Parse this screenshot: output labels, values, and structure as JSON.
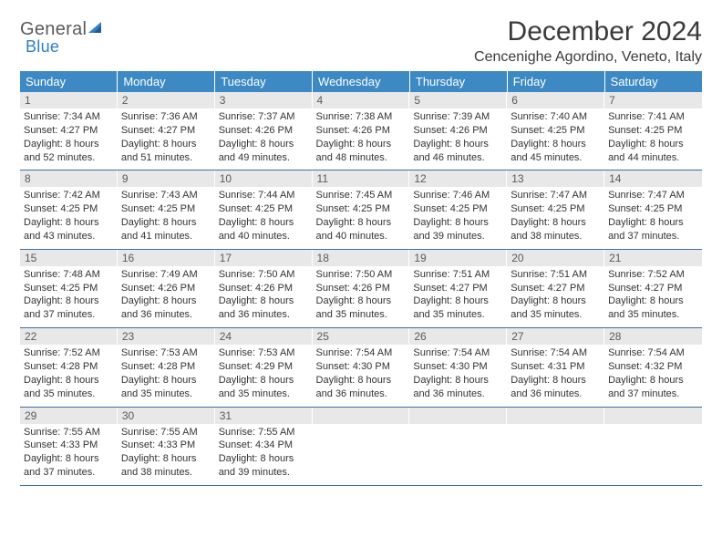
{
  "brand": {
    "word1": "General",
    "word2": "Blue",
    "word1_color": "#5a5a5a",
    "word2_color": "#2f7fc2",
    "triangle_fill": "#2f7fc2"
  },
  "header": {
    "title": "December 2024",
    "location": "Cencenighe Agordino, Veneto, Italy"
  },
  "colors": {
    "header_bg": "#3d89c3",
    "header_text": "#ffffff",
    "daynum_bg": "#e8e8e8",
    "daynum_text": "#5a5a5a",
    "cell_border": "#3d6fa0",
    "body_text": "#333333",
    "page_bg": "#ffffff"
  },
  "typography": {
    "title_fontsize": 30,
    "location_fontsize": 16,
    "weekday_fontsize": 13,
    "body_fontsize": 11
  },
  "calendar": {
    "type": "table",
    "columns": [
      "Sunday",
      "Monday",
      "Tuesday",
      "Wednesday",
      "Thursday",
      "Friday",
      "Saturday"
    ],
    "rows": [
      [
        {
          "day": "1",
          "sunrise": "Sunrise: 7:34 AM",
          "sunset": "Sunset: 4:27 PM",
          "daylight": "Daylight: 8 hours and 52 minutes."
        },
        {
          "day": "2",
          "sunrise": "Sunrise: 7:36 AM",
          "sunset": "Sunset: 4:27 PM",
          "daylight": "Daylight: 8 hours and 51 minutes."
        },
        {
          "day": "3",
          "sunrise": "Sunrise: 7:37 AM",
          "sunset": "Sunset: 4:26 PM",
          "daylight": "Daylight: 8 hours and 49 minutes."
        },
        {
          "day": "4",
          "sunrise": "Sunrise: 7:38 AM",
          "sunset": "Sunset: 4:26 PM",
          "daylight": "Daylight: 8 hours and 48 minutes."
        },
        {
          "day": "5",
          "sunrise": "Sunrise: 7:39 AM",
          "sunset": "Sunset: 4:26 PM",
          "daylight": "Daylight: 8 hours and 46 minutes."
        },
        {
          "day": "6",
          "sunrise": "Sunrise: 7:40 AM",
          "sunset": "Sunset: 4:25 PM",
          "daylight": "Daylight: 8 hours and 45 minutes."
        },
        {
          "day": "7",
          "sunrise": "Sunrise: 7:41 AM",
          "sunset": "Sunset: 4:25 PM",
          "daylight": "Daylight: 8 hours and 44 minutes."
        }
      ],
      [
        {
          "day": "8",
          "sunrise": "Sunrise: 7:42 AM",
          "sunset": "Sunset: 4:25 PM",
          "daylight": "Daylight: 8 hours and 43 minutes."
        },
        {
          "day": "9",
          "sunrise": "Sunrise: 7:43 AM",
          "sunset": "Sunset: 4:25 PM",
          "daylight": "Daylight: 8 hours and 41 minutes."
        },
        {
          "day": "10",
          "sunrise": "Sunrise: 7:44 AM",
          "sunset": "Sunset: 4:25 PM",
          "daylight": "Daylight: 8 hours and 40 minutes."
        },
        {
          "day": "11",
          "sunrise": "Sunrise: 7:45 AM",
          "sunset": "Sunset: 4:25 PM",
          "daylight": "Daylight: 8 hours and 40 minutes."
        },
        {
          "day": "12",
          "sunrise": "Sunrise: 7:46 AM",
          "sunset": "Sunset: 4:25 PM",
          "daylight": "Daylight: 8 hours and 39 minutes."
        },
        {
          "day": "13",
          "sunrise": "Sunrise: 7:47 AM",
          "sunset": "Sunset: 4:25 PM",
          "daylight": "Daylight: 8 hours and 38 minutes."
        },
        {
          "day": "14",
          "sunrise": "Sunrise: 7:47 AM",
          "sunset": "Sunset: 4:25 PM",
          "daylight": "Daylight: 8 hours and 37 minutes."
        }
      ],
      [
        {
          "day": "15",
          "sunrise": "Sunrise: 7:48 AM",
          "sunset": "Sunset: 4:25 PM",
          "daylight": "Daylight: 8 hours and 37 minutes."
        },
        {
          "day": "16",
          "sunrise": "Sunrise: 7:49 AM",
          "sunset": "Sunset: 4:26 PM",
          "daylight": "Daylight: 8 hours and 36 minutes."
        },
        {
          "day": "17",
          "sunrise": "Sunrise: 7:50 AM",
          "sunset": "Sunset: 4:26 PM",
          "daylight": "Daylight: 8 hours and 36 minutes."
        },
        {
          "day": "18",
          "sunrise": "Sunrise: 7:50 AM",
          "sunset": "Sunset: 4:26 PM",
          "daylight": "Daylight: 8 hours and 35 minutes."
        },
        {
          "day": "19",
          "sunrise": "Sunrise: 7:51 AM",
          "sunset": "Sunset: 4:27 PM",
          "daylight": "Daylight: 8 hours and 35 minutes."
        },
        {
          "day": "20",
          "sunrise": "Sunrise: 7:51 AM",
          "sunset": "Sunset: 4:27 PM",
          "daylight": "Daylight: 8 hours and 35 minutes."
        },
        {
          "day": "21",
          "sunrise": "Sunrise: 7:52 AM",
          "sunset": "Sunset: 4:27 PM",
          "daylight": "Daylight: 8 hours and 35 minutes."
        }
      ],
      [
        {
          "day": "22",
          "sunrise": "Sunrise: 7:52 AM",
          "sunset": "Sunset: 4:28 PM",
          "daylight": "Daylight: 8 hours and 35 minutes."
        },
        {
          "day": "23",
          "sunrise": "Sunrise: 7:53 AM",
          "sunset": "Sunset: 4:28 PM",
          "daylight": "Daylight: 8 hours and 35 minutes."
        },
        {
          "day": "24",
          "sunrise": "Sunrise: 7:53 AM",
          "sunset": "Sunset: 4:29 PM",
          "daylight": "Daylight: 8 hours and 35 minutes."
        },
        {
          "day": "25",
          "sunrise": "Sunrise: 7:54 AM",
          "sunset": "Sunset: 4:30 PM",
          "daylight": "Daylight: 8 hours and 36 minutes."
        },
        {
          "day": "26",
          "sunrise": "Sunrise: 7:54 AM",
          "sunset": "Sunset: 4:30 PM",
          "daylight": "Daylight: 8 hours and 36 minutes."
        },
        {
          "day": "27",
          "sunrise": "Sunrise: 7:54 AM",
          "sunset": "Sunset: 4:31 PM",
          "daylight": "Daylight: 8 hours and 36 minutes."
        },
        {
          "day": "28",
          "sunrise": "Sunrise: 7:54 AM",
          "sunset": "Sunset: 4:32 PM",
          "daylight": "Daylight: 8 hours and 37 minutes."
        }
      ],
      [
        {
          "day": "29",
          "sunrise": "Sunrise: 7:55 AM",
          "sunset": "Sunset: 4:33 PM",
          "daylight": "Daylight: 8 hours and 37 minutes."
        },
        {
          "day": "30",
          "sunrise": "Sunrise: 7:55 AM",
          "sunset": "Sunset: 4:33 PM",
          "daylight": "Daylight: 8 hours and 38 minutes."
        },
        {
          "day": "31",
          "sunrise": "Sunrise: 7:55 AM",
          "sunset": "Sunset: 4:34 PM",
          "daylight": "Daylight: 8 hours and 39 minutes."
        },
        {
          "day": ""
        },
        {
          "day": ""
        },
        {
          "day": ""
        },
        {
          "day": ""
        }
      ]
    ]
  }
}
